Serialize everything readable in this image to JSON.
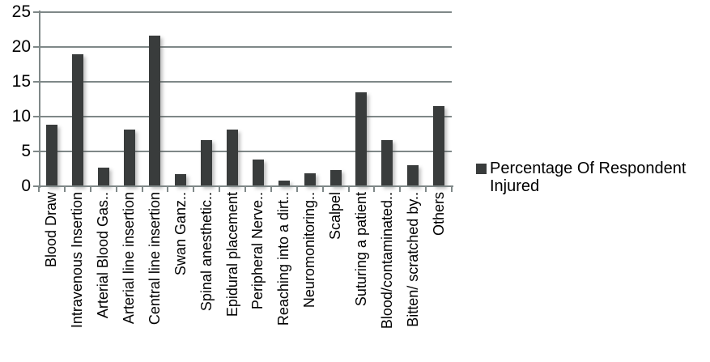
{
  "chart_data": {
    "type": "bar",
    "title": "",
    "xlabel": "",
    "ylabel": "",
    "categories": [
      "Blood Draw",
      "Intravenous Insertion",
      "Arterial Blood Gas..",
      "Arterial line insertion",
      "Central line insertion",
      "Swan Ganz..",
      "Spinal anesthetic..",
      "Epidural placement",
      "Peripheral Nerve..",
      "Reaching into a dirt..",
      "Neuromonitoring..",
      "Scalpel",
      "Suturing a patient",
      "Blood/contaminated..",
      "Bitten/ scratched by..",
      "Others"
    ],
    "series": [
      {
        "name": "Percentage Of Respondent Injured",
        "values": [
          8.8,
          19,
          2.7,
          8.1,
          21.6,
          1.7,
          6.6,
          8.1,
          3.8,
          0.8,
          1.9,
          2.3,
          13.5,
          6.6,
          3.0,
          11.5
        ]
      }
    ],
    "ylim": [
      0,
      25
    ],
    "yticks": [
      0,
      5,
      10,
      15,
      20,
      25
    ],
    "grid": "horizontal-on",
    "legend_position": "right",
    "colors": {
      "bar": "#393c3c",
      "gridline": "#7f8888",
      "text": "#000000",
      "background": "#ffffff"
    }
  },
  "legend": {
    "label": "Percentage Of Respondent Injured",
    "marker": "square-icon"
  }
}
